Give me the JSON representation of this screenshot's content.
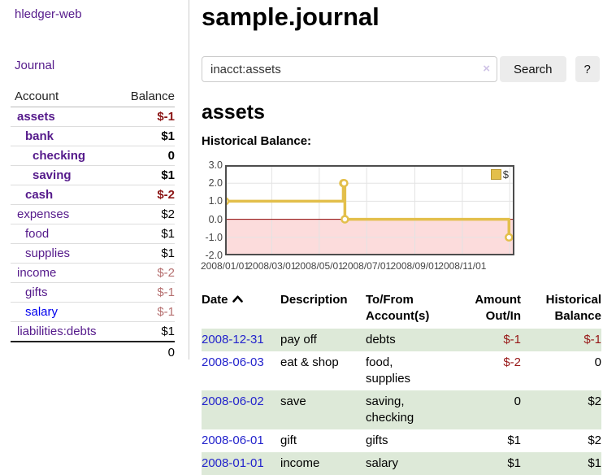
{
  "brand": "hledger-web",
  "nav": {
    "journal": "Journal"
  },
  "sidebar": {
    "account_header": "Account",
    "balance_header": "Balance",
    "accounts": [
      {
        "name": "assets",
        "balance": "$-1"
      },
      {
        "name": "bank",
        "balance": "$1"
      },
      {
        "name": "checking",
        "balance": "0"
      },
      {
        "name": "saving",
        "balance": "$1"
      },
      {
        "name": "cash",
        "balance": "$-2"
      },
      {
        "name": "expenses",
        "balance": "$2"
      },
      {
        "name": "food",
        "balance": "$1"
      },
      {
        "name": "supplies",
        "balance": "$1"
      },
      {
        "name": "income",
        "balance": "$-2"
      },
      {
        "name": "gifts",
        "balance": "$-1"
      },
      {
        "name": "salary",
        "balance": "$-1"
      },
      {
        "name": "liabilities:debts",
        "balance": "$1"
      }
    ],
    "total": "0"
  },
  "main": {
    "title": "sample.journal",
    "search": {
      "value": "inacct:assets",
      "clear_icon": "×",
      "search_button": "Search",
      "help_button": "?"
    },
    "account_title": "assets",
    "chart_label": "Historical Balance:"
  },
  "chart_data": {
    "type": "line",
    "step": true,
    "title": "Historical Balance:",
    "series": [
      {
        "name": "$",
        "points": [
          [
            "2008-01-01",
            1
          ],
          [
            "2008-06-01",
            2
          ],
          [
            "2008-06-02",
            2
          ],
          [
            "2008-06-03",
            0
          ],
          [
            "2008-12-31",
            -1
          ]
        ]
      }
    ],
    "ylim": [
      -2,
      3
    ],
    "yticks": [
      "3.0",
      "2.0",
      "1.0",
      "0.0",
      "-1.0",
      "-2.0"
    ],
    "ytick_values": [
      3,
      2,
      1,
      0,
      -1,
      -2
    ],
    "xlim": [
      "2008-01-01",
      "2009-01-07"
    ],
    "xticks": [
      {
        "date": "2008-01-01",
        "label": "2008/01/01"
      },
      {
        "date": "2008-03-01",
        "label": "2008/03/01"
      },
      {
        "date": "2008-05-01",
        "label": "2008/05/01"
      },
      {
        "date": "2008-07-01",
        "label": "2008/07/01"
      },
      {
        "date": "2008-09-01",
        "label": "2008/09/01"
      },
      {
        "date": "2008-11-01",
        "label": "2008/11/01"
      }
    ],
    "x_gridlines": [
      "2008-03-01",
      "2008-05-01",
      "2008-07-01",
      "2008-09-01",
      "2008-11-01",
      "2009-01-01"
    ],
    "legend": {
      "label": "$",
      "position": "top-right"
    },
    "grid": true,
    "colors": {
      "line": "#e3bf4b",
      "marker_fill": "#ffffff",
      "negative_fill": "#fcdcdc",
      "zero_line": "#8b0000",
      "gridline": "#e3e3e3",
      "border": "#4d4d4d"
    }
  },
  "register": {
    "columns": [
      "Date",
      "Description",
      "To/From Account(s)",
      "Amount Out/In",
      "Historical Balance"
    ],
    "sort": {
      "column": "Date",
      "direction": "asc"
    },
    "rows": [
      {
        "date": "2008-12-31",
        "description": "pay off",
        "accounts": "debts",
        "amount": "$-1",
        "balance": "$-1"
      },
      {
        "date": "2008-06-03",
        "description": "eat & shop",
        "accounts": "food, supplies",
        "amount": "$-2",
        "balance": "0"
      },
      {
        "date": "2008-06-02",
        "description": "save",
        "accounts": "saving, checking",
        "amount": "0",
        "balance": "$2"
      },
      {
        "date": "2008-06-01",
        "description": "gift",
        "accounts": "gifts",
        "amount": "$1",
        "balance": "$2"
      },
      {
        "date": "2008-01-01",
        "description": "income",
        "accounts": "salary",
        "amount": "$1",
        "balance": "$1"
      }
    ]
  }
}
